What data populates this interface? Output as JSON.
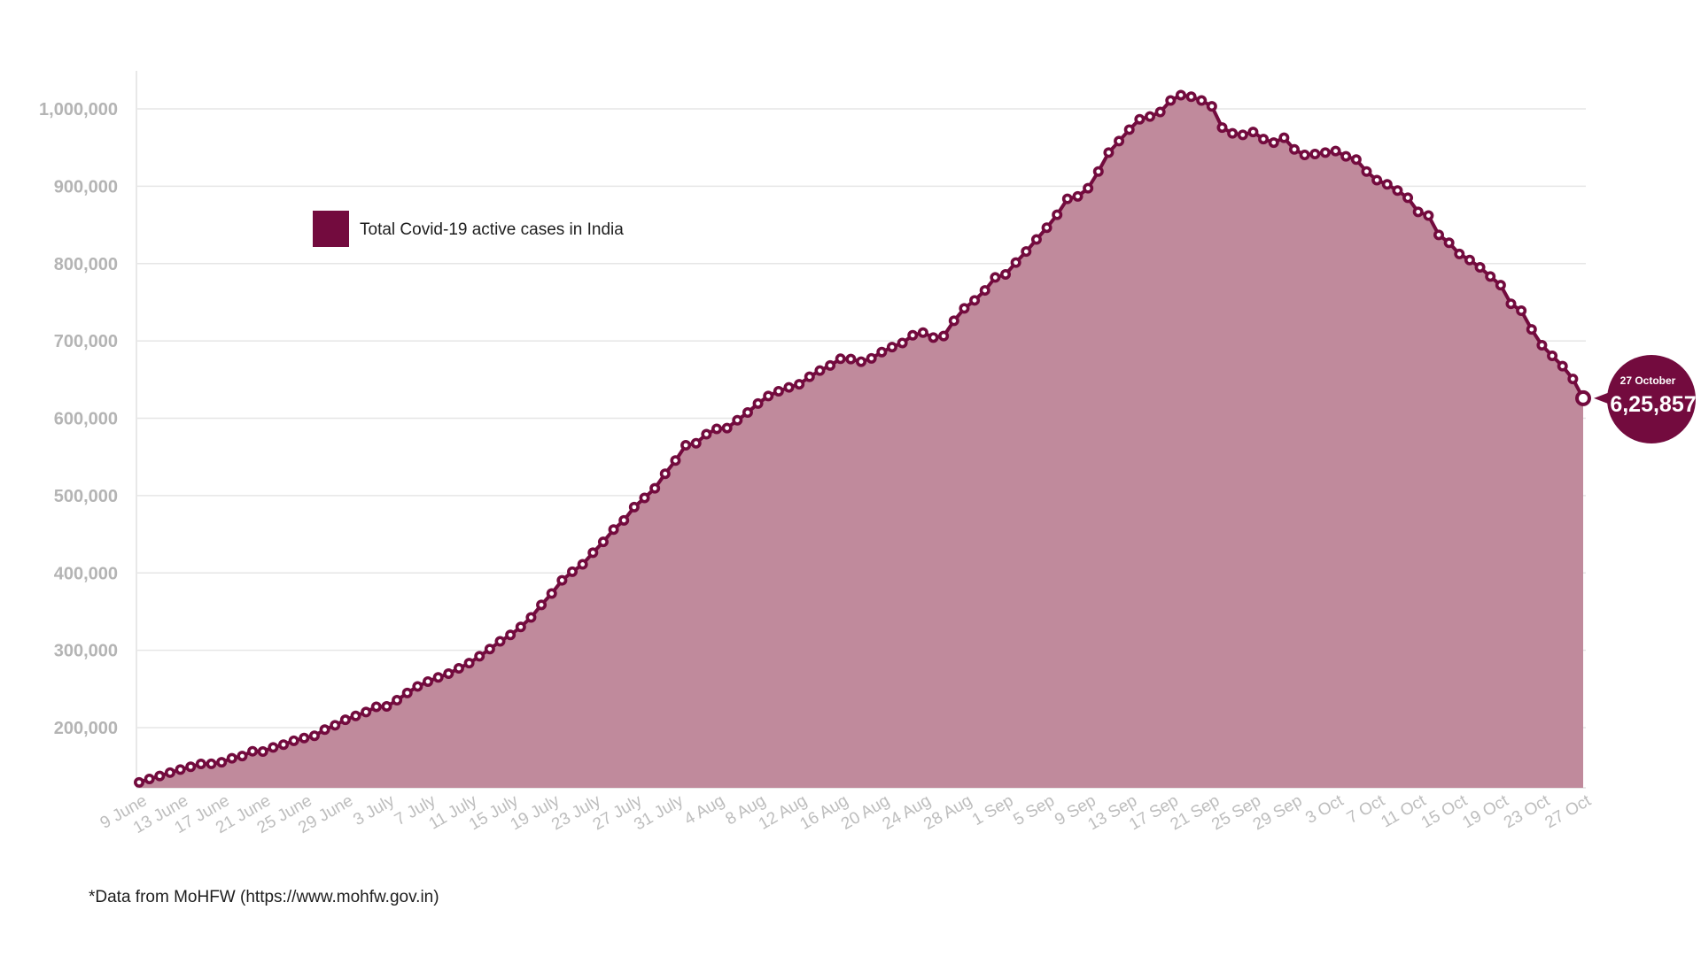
{
  "chart_data": {
    "type": "area",
    "title": "",
    "xlabel": "",
    "ylabel": "",
    "legend": {
      "label": "Total Covid-19 active cases in India",
      "color": "#730b3e",
      "position": "top-left"
    },
    "ylim": [
      120000,
      1040000
    ],
    "yticks": [
      200000,
      300000,
      400000,
      500000,
      600000,
      700000,
      800000,
      900000,
      1000000
    ],
    "ytick_labels": [
      "200,000",
      "300,000",
      "400,000",
      "500,000",
      "600,000",
      "700,000",
      "800,000",
      "900,000",
      "1,000,000"
    ],
    "grid": true,
    "x_start": "9 June",
    "x_end": "27 Oct",
    "x_tick_labels": [
      "9 June",
      "13 June",
      "17 June",
      "21 June",
      "25 June",
      "29 June",
      "3 July",
      "7 July",
      "11 July",
      "15 July",
      "19 July",
      "23 July",
      "27 July",
      "31 July",
      "4 Aug",
      "8 Aug",
      "12 Aug",
      "16 Aug",
      "20 Aug",
      "24 Aug",
      "28 Aug",
      "1 Sep",
      "5 Sep",
      "9 Sep",
      "13 Sep",
      "17 Sep",
      "21 Sep",
      "25 Sep",
      "29 Sep",
      "3 Oct",
      "7 Oct",
      "11 Oct",
      "15 Oct",
      "19 Oct",
      "23 Oct",
      "27 Oct"
    ],
    "series": [
      {
        "name": "Total Covid-19 active cases in India",
        "color": "#730b3e",
        "fill": "#c08a9c",
        "values": [
          129215,
          133632,
          137448,
          141842,
          145779,
          149348,
          153106,
          153178,
          155227,
          160384,
          163248,
          169451,
          169063,
          174387,
          178014,
          183022,
          186514,
          189463,
          197387,
          203051,
          210120,
          215125,
          220114,
          226947,
          227439,
          235433,
          244814,
          253287,
          259557,
          264944,
          269789,
          276682,
          283407,
          292258,
          301609,
          311565,
          319840,
          330158,
          342473,
          358692,
          373379,
          390459,
          401609,
          411133,
          426167,
          440135,
          456071,
          468002,
          485114,
          496988,
          509447,
          528242,
          545318,
          565103,
          567730,
          579357,
          586298,
          587287,
          597450,
          607384,
          619088,
          628747,
          634945,
          639929,
          643948,
          653622,
          661595,
          668220,
          676900,
          676514,
          673166,
          677444,
          685598,
          692028,
          697330,
          707267,
          710771,
          704348,
          706285,
          725991,
          742023,
          752424,
          765302,
          782049,
          785996,
          801282,
          815538,
          831124,
          846395,
          863133,
          883697,
          886862,
          897394,
          919018,
          943480,
          958316,
          973175,
          986598,
          990061,
          995933,
          1010824,
          1017754,
          1015681,
          1010824,
          1003299,
          975861,
          968377,
          966382,
          970116,
          960969,
          956402,
          962640,
          947576,
          940441,
          941628,
          943480,
          945533,
          938622,
          934427,
          919023,
          907883,
          902425,
          894386,
          885053,
          866831,
          862031,
          837095,
          826876,
          812390,
          804528,
          795087,
          783311,
          772055,
          747995,
          739090,
          714884,
          694426,
          680680,
          667354,
          650847,
          625857
        ]
      }
    ],
    "annotation": {
      "date": "27 October",
      "value_label": "6,25,857"
    }
  },
  "footnote": "*Data from MoHFW (https://www.mohfw.gov.in)"
}
